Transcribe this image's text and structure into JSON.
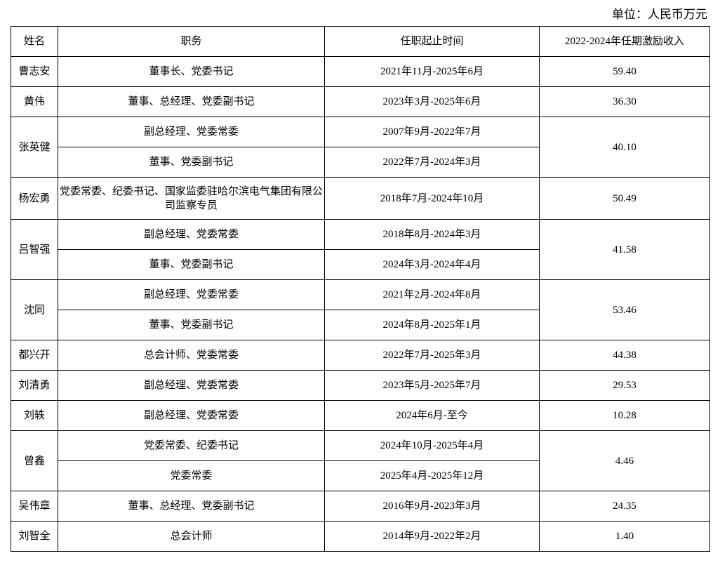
{
  "unit_label": "单位：人民币万元",
  "table": {
    "headers": [
      "姓名",
      "职务",
      "任职起止时间",
      "2022-2024年任期激励收入"
    ],
    "people": [
      {
        "name": "曹志安",
        "roles": [
          {
            "title": "董事长、党委书记",
            "period": "2021年11月-2025年6月"
          }
        ],
        "income": "59.40"
      },
      {
        "name": "黄伟",
        "roles": [
          {
            "title": "董事、总经理、党委副书记",
            "period": "2023年3月-2025年6月"
          }
        ],
        "income": "36.30"
      },
      {
        "name": "张英健",
        "roles": [
          {
            "title": "副总经理、党委常委",
            "period": "2007年9月-2022年7月"
          },
          {
            "title": "董事、党委副书记",
            "period": "2022年7月-2024年3月"
          }
        ],
        "income": "40.10"
      },
      {
        "name": "杨宏勇",
        "roles": [
          {
            "title": "党委常委、纪委书记、国家监委驻哈尔滨电气集团有限公司监察专员",
            "period": "2018年7月-2024年10月"
          }
        ],
        "income": "50.49"
      },
      {
        "name": "吕智强",
        "roles": [
          {
            "title": "副总经理、党委常委",
            "period": "2018年8月-2024年3月"
          },
          {
            "title": "董事、党委副书记",
            "period": "2024年3月-2024年4月"
          }
        ],
        "income": "41.58"
      },
      {
        "name": "沈同",
        "roles": [
          {
            "title": "副总经理、党委常委",
            "period": "2021年2月-2024年8月"
          },
          {
            "title": "董事、党委副书记",
            "period": "2024年8月-2025年1月"
          }
        ],
        "income": "53.46"
      },
      {
        "name": "都兴开",
        "roles": [
          {
            "title": "总会计师、党委常委",
            "period": "2022年7月-2025年3月"
          }
        ],
        "income": "44.38"
      },
      {
        "name": "刘清勇",
        "roles": [
          {
            "title": "副总经理、党委常委",
            "period": "2023年5月-2025年7月"
          }
        ],
        "income": "29.53"
      },
      {
        "name": "刘轶",
        "roles": [
          {
            "title": "副总经理、党委常委",
            "period": "2024年6月-至今"
          }
        ],
        "income": "10.28"
      },
      {
        "name": "曾鑫",
        "roles": [
          {
            "title": "党委常委、纪委书记",
            "period": "2024年10月-2025年4月"
          },
          {
            "title": "党委常委",
            "period": "2025年4月-2025年12月"
          }
        ],
        "income": "4.46"
      },
      {
        "name": "吴伟章",
        "roles": [
          {
            "title": "董事、总经理、党委副书记",
            "period": "2016年9月-2023年3月"
          }
        ],
        "income": "24.35"
      },
      {
        "name": "刘智全",
        "roles": [
          {
            "title": "总会计师",
            "period": "2014年9月-2022年2月"
          }
        ],
        "income": "1.40"
      }
    ]
  }
}
